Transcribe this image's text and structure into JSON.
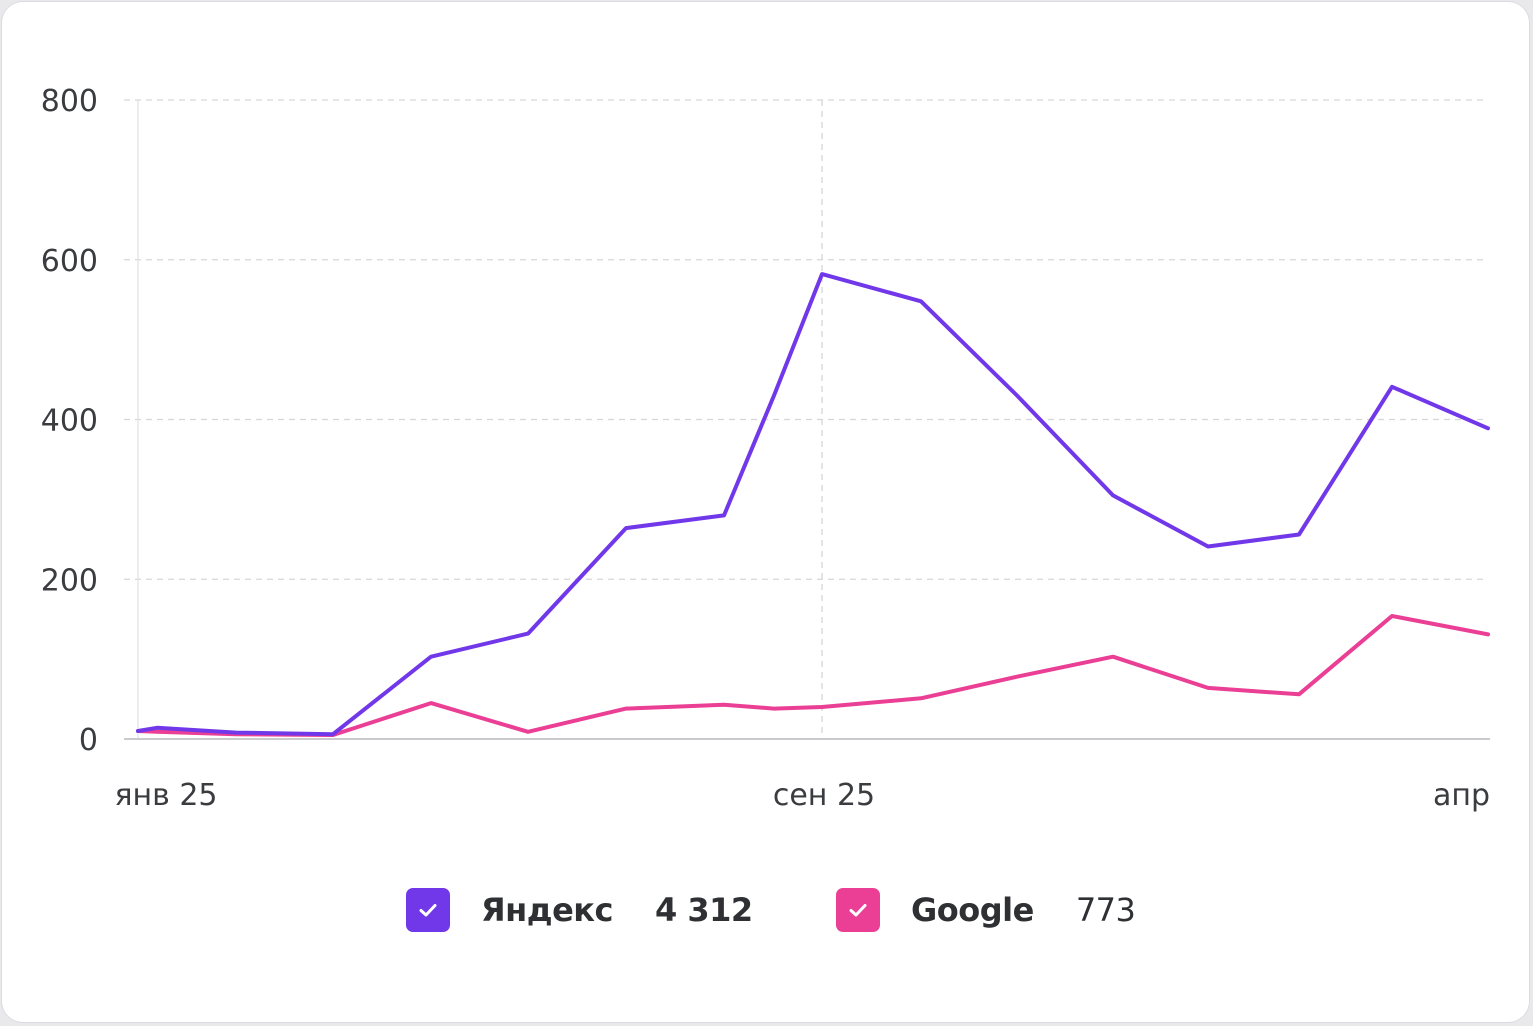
{
  "chart_data": {
    "type": "line",
    "x_tick_labels": [
      "янв 25",
      "сен 25",
      "апр"
    ],
    "y_ticks": [
      0,
      200,
      400,
      600,
      800
    ],
    "ylim": [
      0,
      800
    ],
    "grid": true,
    "series": [
      {
        "name": "Яндекс",
        "color": "#7138ea",
        "values": [
          10,
          14,
          8,
          6,
          103,
          132,
          264,
          280,
          430,
          582,
          548,
          430,
          305,
          241,
          256,
          441,
          389
        ]
      },
      {
        "name": "Google",
        "color": "#ea3f94",
        "values": [
          10,
          9,
          6,
          5,
          45,
          9,
          38,
          43,
          38,
          40,
          51,
          78,
          103,
          64,
          56,
          154,
          131
        ]
      }
    ]
  },
  "legend": [
    {
      "name": "Яндекс",
      "value": "4 312",
      "color": "#7138ea"
    },
    {
      "name": "Google",
      "value": "773",
      "color": "#ea3f94"
    }
  ]
}
